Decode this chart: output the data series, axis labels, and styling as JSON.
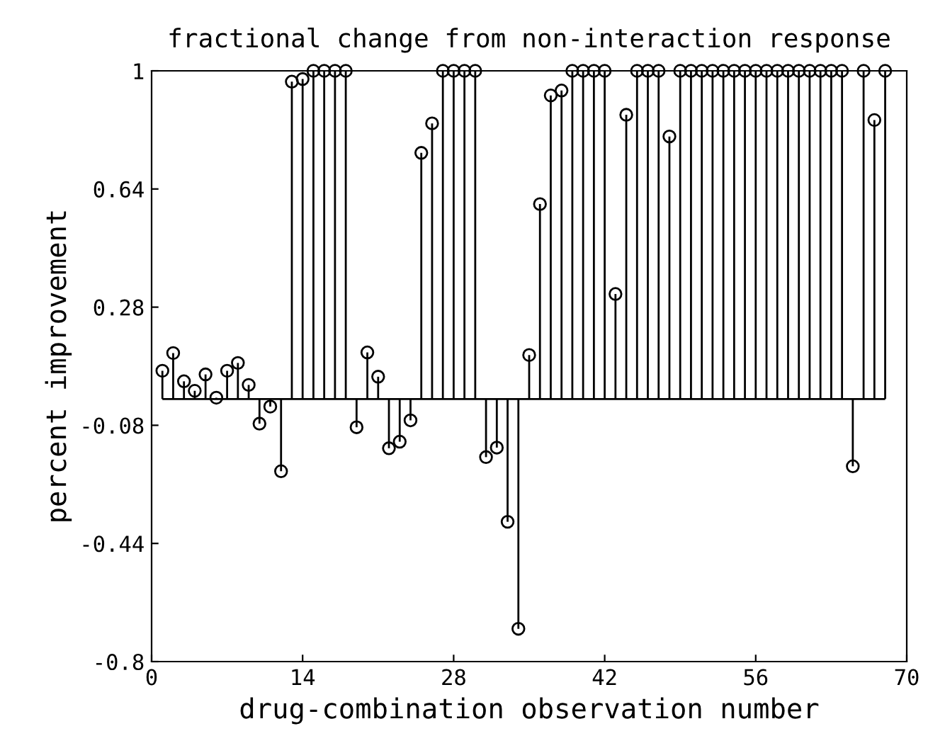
{
  "chart_data": {
    "type": "lollipop",
    "title": "fractional change from non-interaction response",
    "xlabel": "drug-combination observation number",
    "ylabel": "percent improvement",
    "x": [
      1,
      2,
      3,
      4,
      5,
      6,
      7,
      8,
      9,
      10,
      11,
      12,
      13,
      14,
      15,
      16,
      17,
      18,
      19,
      20,
      21,
      22,
      23,
      24,
      25,
      26,
      27,
      28,
      29,
      30,
      31,
      32,
      33,
      34,
      35,
      36,
      37,
      38,
      39,
      40,
      41,
      42,
      43,
      44,
      45,
      46,
      47,
      48,
      49,
      50,
      51,
      52,
      53,
      54,
      55,
      56,
      57,
      58,
      59,
      60,
      61,
      62,
      63,
      64,
      65,
      66,
      67,
      68
    ],
    "values": [
      0.086,
      0.14,
      0.054,
      0.025,
      0.075,
      0.004,
      0.086,
      0.11,
      0.043,
      -0.075,
      -0.023,
      -0.22,
      0.967,
      0.975,
      1,
      1,
      1,
      1,
      -0.086,
      0.142,
      0.068,
      -0.15,
      -0.13,
      -0.065,
      0.75,
      0.84,
      1,
      1,
      1,
      1,
      -0.177,
      -0.148,
      -0.374,
      -0.7,
      0.134,
      0.594,
      0.925,
      0.94,
      1,
      1,
      1,
      1,
      0.32,
      0.866,
      1,
      1,
      1,
      0.8,
      1,
      1,
      1,
      1,
      1,
      1,
      1,
      1,
      1,
      1,
      1,
      1,
      1,
      1,
      1,
      1,
      -0.205,
      1,
      0.85,
      1
    ],
    "color": "#000000",
    "marker": "circle",
    "xlim": [
      0,
      70
    ],
    "xticks": [
      0,
      14,
      28,
      42,
      56,
      70
    ],
    "ylim": [
      -0.8,
      1
    ],
    "yticks": [
      -0.8,
      -0.44,
      -0.08,
      0.28,
      0.64,
      1
    ],
    "grid": false
  }
}
